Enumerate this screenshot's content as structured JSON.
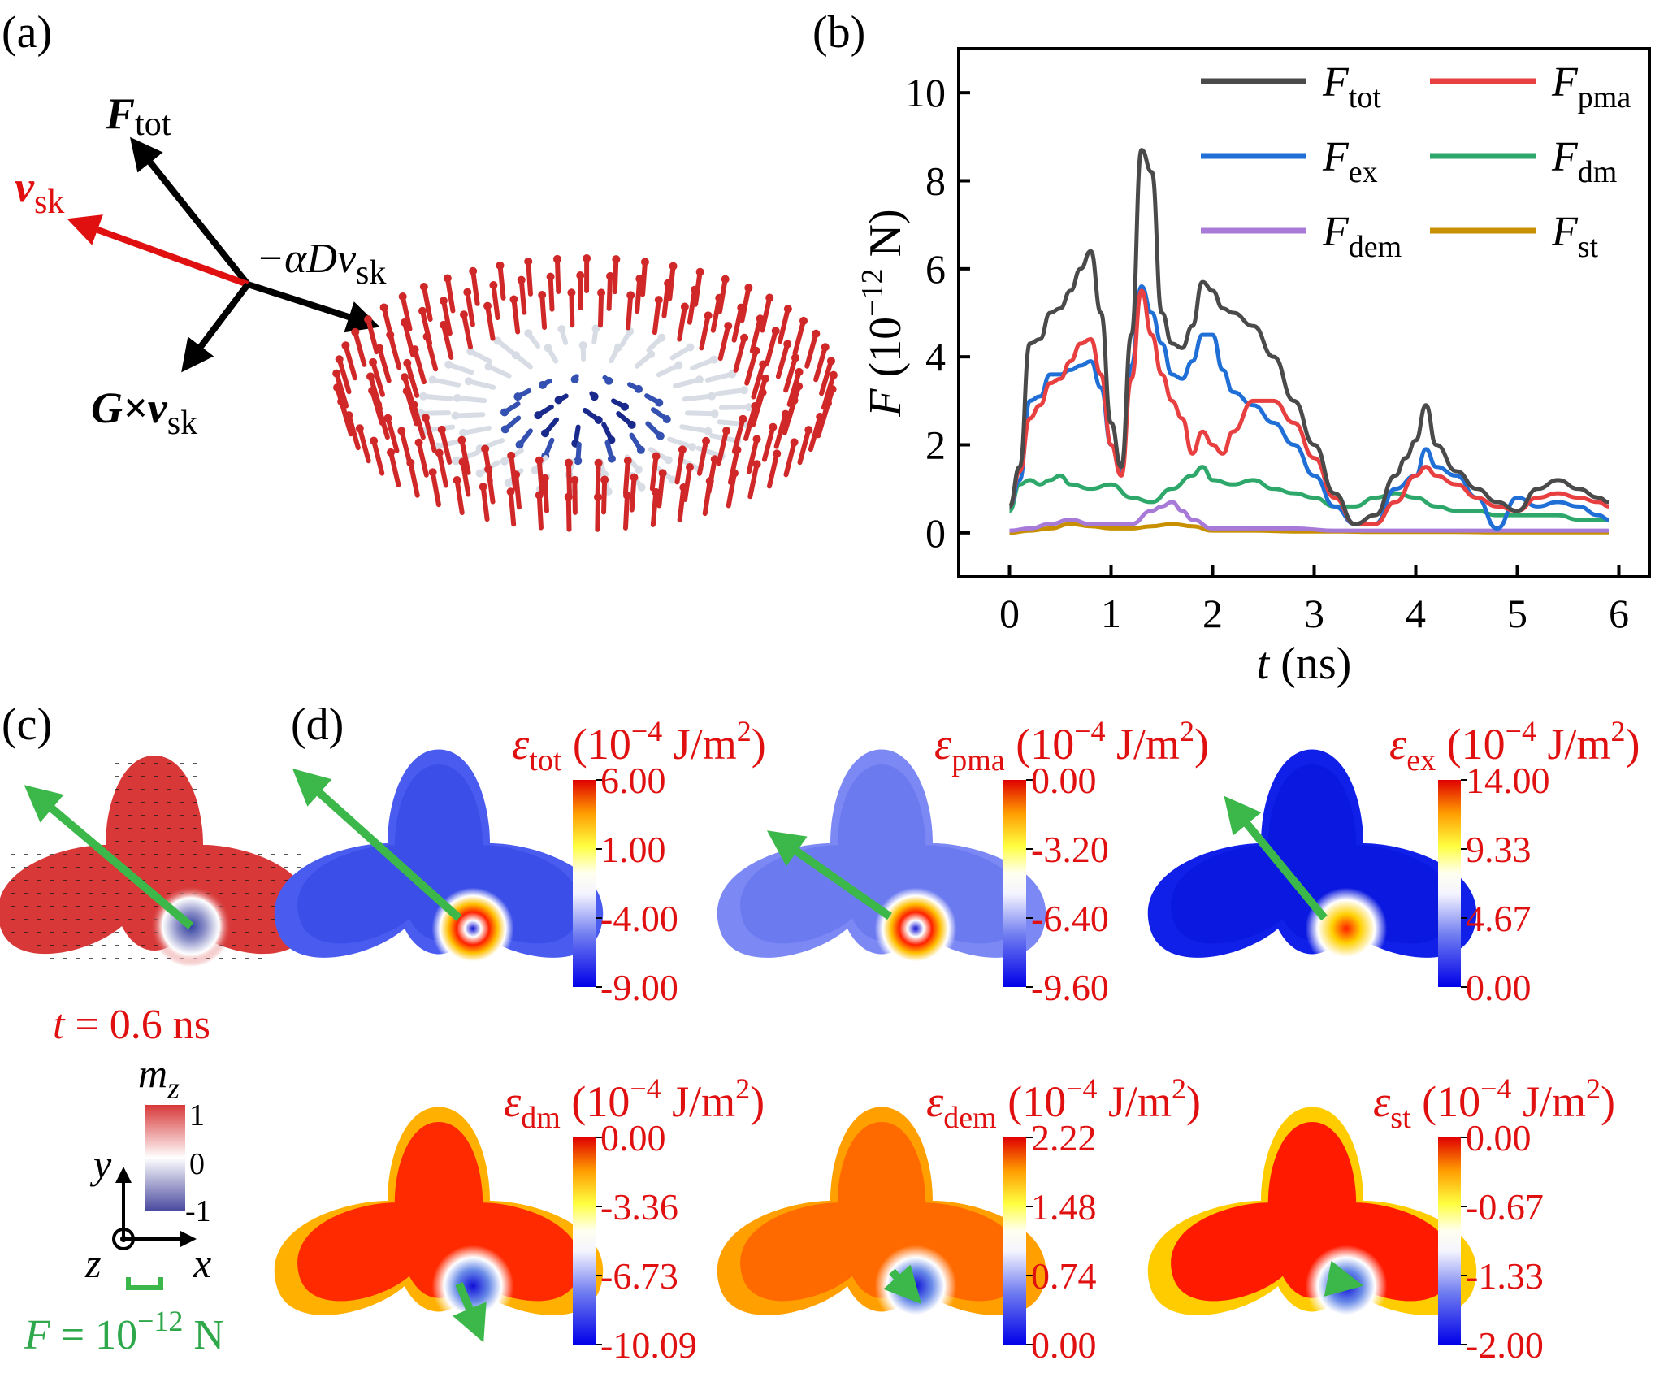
{
  "panels": {
    "a": "(a)",
    "b": "(b)",
    "c": "(c)",
    "d": "(d)"
  },
  "panel_a": {
    "labels": {
      "f_tot_main": "F",
      "f_tot_sub": "tot",
      "v_sk_main": "v",
      "v_sk_sub": "sk",
      "damp_main": "−αDv",
      "damp_sub": "sk",
      "gyro_main": "G×v",
      "gyro_sub": "sk"
    },
    "colors": {
      "v_sk": "#e01010",
      "arrows": "#000000"
    }
  },
  "chart_data": {
    "type": "line",
    "xlabel_italic": "t",
    "xlabel_rest": " (ns)",
    "ylabel_italic": "F",
    "ylabel_rest": " (10",
    "ylabel_exp": "−12",
    "ylabel_unit": " N)",
    "xlim": [
      -0.5,
      6.3
    ],
    "ylim": [
      -1,
      11
    ],
    "xticks": [
      0,
      1,
      2,
      3,
      4,
      5,
      6
    ],
    "yticks": [
      0,
      2,
      4,
      6,
      8,
      10
    ],
    "grid": false,
    "legend_placement": "top-right",
    "series": [
      {
        "name_main": "F",
        "name_sub": "tot",
        "color": "#4a4a4a",
        "x": [
          0,
          0.1,
          0.2,
          0.3,
          0.4,
          0.5,
          0.6,
          0.7,
          0.8,
          0.9,
          1.0,
          1.1,
          1.2,
          1.3,
          1.4,
          1.5,
          1.6,
          1.7,
          1.8,
          1.9,
          2.0,
          2.1,
          2.2,
          2.4,
          2.6,
          2.8,
          3.0,
          3.2,
          3.4,
          3.6,
          3.8,
          3.9,
          4.0,
          4.1,
          4.2,
          4.4,
          4.6,
          4.8,
          5.0,
          5.2,
          5.4,
          5.6,
          5.8,
          5.9
        ],
        "y": [
          0.6,
          1.5,
          4.3,
          4.4,
          5.0,
          5.1,
          5.5,
          6.0,
          6.4,
          5.0,
          2.5,
          1.5,
          4.5,
          8.7,
          8.2,
          5.0,
          4.3,
          4.2,
          4.7,
          5.7,
          5.5,
          5.1,
          5.0,
          4.7,
          4.0,
          3.0,
          2.0,
          0.9,
          0.2,
          0.4,
          1.3,
          1.7,
          2.1,
          2.9,
          2.0,
          1.4,
          1.0,
          0.7,
          0.5,
          1.0,
          1.2,
          1.0,
          0.8,
          0.7
        ]
      },
      {
        "name_main": "F",
        "name_sub": "pma",
        "color": "#e84040",
        "x": [
          0,
          0.1,
          0.2,
          0.3,
          0.4,
          0.5,
          0.6,
          0.7,
          0.8,
          0.9,
          1.0,
          1.1,
          1.2,
          1.3,
          1.4,
          1.5,
          1.6,
          1.7,
          1.8,
          1.9,
          2.0,
          2.1,
          2.2,
          2.4,
          2.6,
          2.8,
          3.0,
          3.2,
          3.4,
          3.6,
          3.8,
          4.0,
          4.1,
          4.2,
          4.4,
          4.6,
          4.8,
          5.0,
          5.2,
          5.4,
          5.6,
          5.8,
          5.9
        ],
        "y": [
          0.6,
          1.4,
          2.6,
          2.9,
          3.4,
          3.5,
          3.9,
          4.3,
          4.4,
          3.6,
          2.0,
          1.3,
          3.5,
          5.5,
          4.5,
          3.6,
          3.0,
          2.6,
          1.8,
          2.3,
          2.0,
          1.8,
          2.3,
          3.0,
          3.0,
          2.5,
          1.7,
          0.8,
          0.2,
          0.2,
          0.7,
          1.3,
          1.5,
          1.3,
          1.1,
          0.8,
          0.6,
          0.5,
          0.8,
          0.9,
          0.8,
          0.7,
          0.6
        ]
      },
      {
        "name_main": "F",
        "name_sub": "ex",
        "color": "#1f6fd6",
        "x": [
          0,
          0.1,
          0.2,
          0.3,
          0.4,
          0.5,
          0.6,
          0.7,
          0.8,
          0.9,
          1.0,
          1.1,
          1.2,
          1.3,
          1.4,
          1.5,
          1.6,
          1.7,
          1.8,
          1.9,
          2.0,
          2.1,
          2.2,
          2.4,
          2.6,
          2.8,
          3.0,
          3.2,
          3.4,
          3.6,
          3.8,
          4.0,
          4.1,
          4.2,
          4.4,
          4.6,
          4.8,
          5.0,
          5.2,
          5.4,
          5.6,
          5.8,
          5.9
        ],
        "y": [
          0.6,
          1.2,
          3.0,
          3.1,
          3.6,
          3.6,
          3.7,
          3.8,
          3.9,
          3.3,
          2.0,
          1.4,
          3.8,
          5.6,
          5.0,
          4.3,
          3.6,
          3.5,
          3.9,
          4.5,
          4.5,
          3.7,
          3.2,
          2.9,
          2.5,
          2.0,
          1.3,
          0.6,
          0.2,
          0.2,
          1.0,
          1.3,
          1.9,
          1.5,
          1.3,
          0.8,
          0.1,
          0.8,
          0.6,
          0.7,
          0.6,
          0.4,
          0.3
        ]
      },
      {
        "name_main": "F",
        "name_sub": "dm",
        "color": "#2ea86a",
        "x": [
          0,
          0.1,
          0.2,
          0.3,
          0.4,
          0.5,
          0.6,
          0.8,
          1.0,
          1.2,
          1.4,
          1.6,
          1.8,
          1.9,
          2.0,
          2.2,
          2.4,
          2.6,
          2.8,
          3.0,
          3.2,
          3.4,
          3.6,
          3.8,
          4.0,
          4.2,
          4.4,
          4.6,
          4.8,
          5.0,
          5.2,
          5.4,
          5.6,
          5.8,
          5.9
        ],
        "y": [
          0.5,
          1.1,
          1.2,
          1.1,
          1.2,
          1.3,
          1.1,
          1.0,
          1.1,
          0.8,
          0.7,
          1.0,
          1.3,
          1.5,
          1.2,
          1.1,
          1.2,
          1.0,
          0.9,
          0.8,
          0.6,
          0.6,
          0.8,
          0.9,
          0.8,
          0.6,
          0.5,
          0.5,
          0.4,
          0.4,
          0.4,
          0.4,
          0.3,
          0.3,
          0.3
        ]
      },
      {
        "name_main": "F",
        "name_sub": "dem",
        "color": "#a77ad8",
        "x": [
          0,
          0.2,
          0.4,
          0.6,
          0.8,
          1.0,
          1.2,
          1.4,
          1.5,
          1.6,
          1.7,
          1.8,
          2.0,
          2.4,
          2.8,
          3.2,
          3.6,
          4.0,
          4.4,
          4.8,
          5.2,
          5.6,
          5.9
        ],
        "y": [
          0.05,
          0.1,
          0.2,
          0.3,
          0.2,
          0.2,
          0.2,
          0.5,
          0.6,
          0.7,
          0.5,
          0.3,
          0.1,
          0.1,
          0.1,
          0.05,
          0.05,
          0.05,
          0.05,
          0.05,
          0.05,
          0.05,
          0.05
        ]
      },
      {
        "name_main": "F",
        "name_sub": "st",
        "color": "#c89000",
        "x": [
          0,
          0.2,
          0.4,
          0.6,
          0.8,
          1.0,
          1.2,
          1.4,
          1.6,
          1.8,
          2.0,
          2.4,
          2.8,
          3.2,
          3.6,
          4.0,
          4.4,
          4.8,
          5.2,
          5.6,
          5.9
        ],
        "y": [
          0.0,
          0.05,
          0.1,
          0.2,
          0.15,
          0.1,
          0.1,
          0.15,
          0.2,
          0.15,
          0.05,
          0.05,
          0.03,
          0.03,
          0.02,
          0.02,
          0.02,
          0.01,
          0.01,
          0.01,
          0.01
        ]
      }
    ]
  },
  "panel_c": {
    "time_label_italic": "t",
    "time_label_rest": " = 0.6 ns",
    "colorbar_label_main": "m",
    "colorbar_label_sub": "z",
    "colorbar_ticks": [
      "1",
      "0",
      "-1"
    ],
    "axis_y": "y",
    "axis_x": "x",
    "axis_z": "z",
    "force_scale_italic": "F",
    "force_scale_rest": " = 10",
    "force_scale_exp": "−12",
    "force_scale_unit": " N",
    "colors": {
      "red": "#d83838",
      "arrow_green": "#3cb84a"
    }
  },
  "panel_d": {
    "unit_open": "(10",
    "unit_exp": "−4",
    "unit_rest": " J/m",
    "unit_sq": "2",
    "unit_close": ")",
    "maps": [
      {
        "sym": "ε",
        "sub": "tot",
        "ticks": [
          "6.00",
          "1.00",
          "-4.00",
          "-9.00"
        ]
      },
      {
        "sym": "ε",
        "sub": "pma",
        "ticks": [
          "0.00",
          "-3.20",
          "-6.40",
          "-9.60"
        ]
      },
      {
        "sym": "ε",
        "sub": "ex",
        "ticks": [
          "14.00",
          "9.33",
          "4.67",
          "0.00"
        ]
      },
      {
        "sym": "ε",
        "sub": "dm",
        "ticks": [
          "0.00",
          "-3.36",
          "-6.73",
          "-10.09"
        ]
      },
      {
        "sym": "ε",
        "sub": "dem",
        "ticks": [
          "2.22",
          "1.48",
          "0.74",
          "0.00"
        ]
      },
      {
        "sym": "ε",
        "sub": "st",
        "ticks": [
          "0.00",
          "-0.67",
          "-1.33",
          "-2.00"
        ]
      }
    ]
  }
}
